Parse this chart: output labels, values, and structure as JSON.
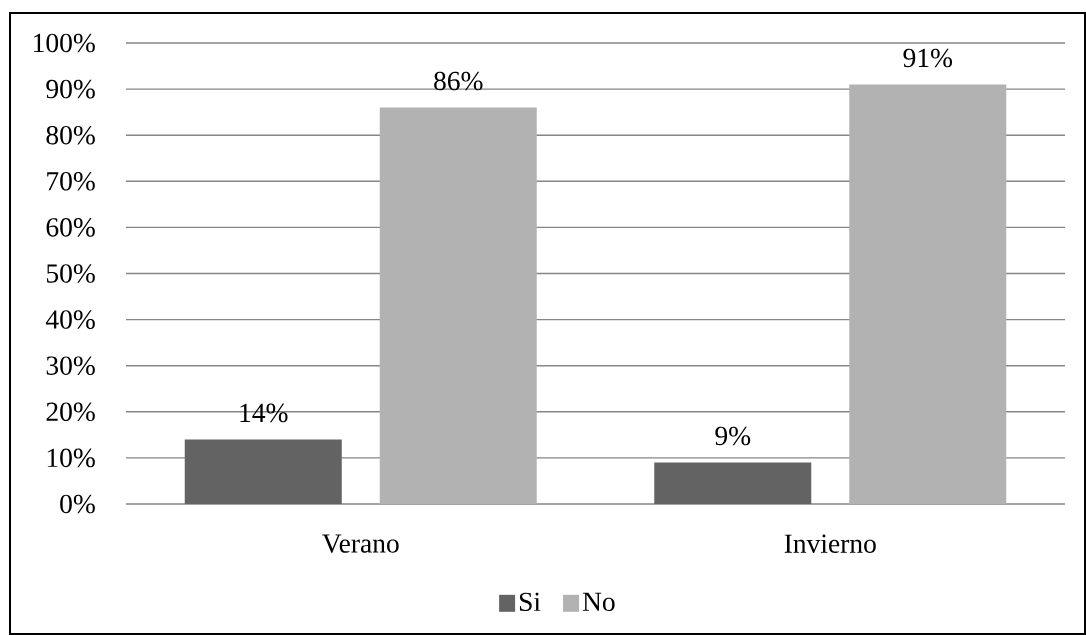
{
  "chart_data": {
    "type": "bar",
    "categories": [
      "Verano",
      "Invierno"
    ],
    "series": [
      {
        "name": "Si",
        "color": "#636363",
        "values": [
          14,
          9
        ],
        "value_labels": [
          "14%",
          "9%"
        ]
      },
      {
        "name": "No",
        "color": "#b2b2b2",
        "values": [
          86,
          91
        ],
        "value_labels": [
          "86%",
          "91%"
        ]
      }
    ],
    "ylim": [
      0,
      100
    ],
    "yticks": [
      {
        "value": 0,
        "label": "0%"
      },
      {
        "value": 10,
        "label": "10%"
      },
      {
        "value": 20,
        "label": "20%"
      },
      {
        "value": 30,
        "label": "30%"
      },
      {
        "value": 40,
        "label": "40%"
      },
      {
        "value": 50,
        "label": "50%"
      },
      {
        "value": 60,
        "label": "60%"
      },
      {
        "value": 70,
        "label": "70%"
      },
      {
        "value": 80,
        "label": "80%"
      },
      {
        "value": 90,
        "label": "90%"
      },
      {
        "value": 100,
        "label": "100%"
      }
    ],
    "grid": "y",
    "legend": "bottom"
  }
}
